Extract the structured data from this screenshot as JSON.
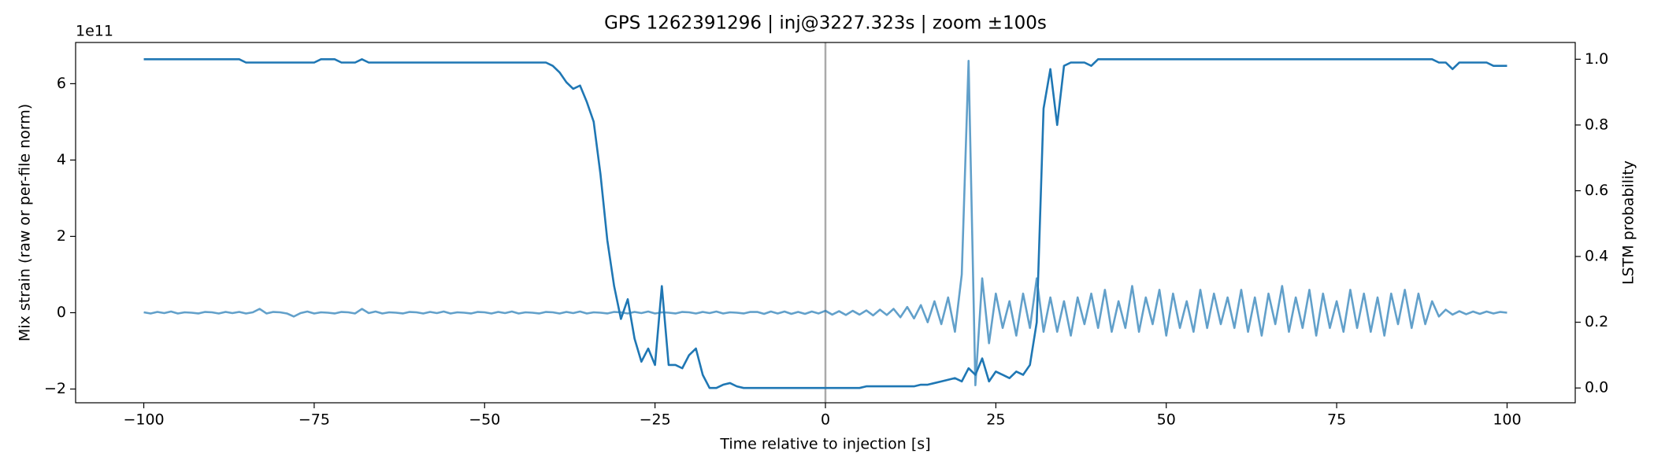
{
  "chart_data": {
    "type": "line",
    "title": "GPS 1262391296 | inj@3227.323s | zoom ±100s",
    "xlabel": "Time relative to injection [s]",
    "ylabel": "Mix strain (raw or per-file norm)",
    "y2label": "LSTM probability",
    "y_offset_label": "1e11",
    "x": [
      -100,
      -99,
      -98,
      -97,
      -96,
      -95,
      -94,
      -93,
      -92,
      -91,
      -90,
      -89,
      -88,
      -87,
      -86,
      -85,
      -84,
      -83,
      -82,
      -81,
      -80,
      -79,
      -78,
      -77,
      -76,
      -75,
      -74,
      -73,
      -72,
      -71,
      -70,
      -69,
      -68,
      -67,
      -66,
      -65,
      -64,
      -63,
      -62,
      -61,
      -60,
      -59,
      -58,
      -57,
      -56,
      -55,
      -54,
      -53,
      -52,
      -51,
      -50,
      -49,
      -48,
      -47,
      -46,
      -45,
      -44,
      -43,
      -42,
      -41,
      -40,
      -39,
      -38,
      -37,
      -36,
      -35,
      -34,
      -33,
      -32,
      -31,
      -30,
      -29,
      -28,
      -27,
      -26,
      -25,
      -24,
      -23,
      -22,
      -21,
      -20,
      -19,
      -18,
      -17,
      -16,
      -15,
      -14,
      -13,
      -12,
      -11,
      -10,
      -9,
      -8,
      -7,
      -6,
      -5,
      -4,
      -3,
      -2,
      -1,
      0,
      1,
      2,
      3,
      4,
      5,
      6,
      7,
      8,
      9,
      10,
      11,
      12,
      13,
      14,
      15,
      16,
      17,
      18,
      19,
      20,
      21,
      22,
      23,
      24,
      25,
      26,
      27,
      28,
      29,
      30,
      31,
      32,
      33,
      34,
      35,
      36,
      37,
      38,
      39,
      40,
      41,
      42,
      43,
      44,
      45,
      46,
      47,
      48,
      49,
      50,
      51,
      52,
      53,
      54,
      55,
      56,
      57,
      58,
      59,
      60,
      61,
      62,
      63,
      64,
      65,
      66,
      67,
      68,
      69,
      70,
      71,
      72,
      73,
      74,
      75,
      76,
      77,
      78,
      79,
      80,
      81,
      82,
      83,
      84,
      85,
      86,
      87,
      88,
      89,
      90,
      91,
      92,
      93,
      94,
      95,
      96,
      97,
      98,
      99,
      100
    ],
    "series": [
      {
        "name": "Mix strain",
        "color": "#1f77b4",
        "opacity": 0.7,
        "axis": "y",
        "values": [
          0.01,
          -0.02,
          0.02,
          -0.01,
          0.03,
          -0.02,
          0.01,
          0.0,
          -0.02,
          0.02,
          0.01,
          -0.02,
          0.02,
          -0.01,
          0.02,
          -0.02,
          0.01,
          0.1,
          -0.02,
          0.02,
          0.01,
          -0.02,
          -0.1,
          -0.01,
          0.03,
          -0.02,
          0.01,
          0.0,
          -0.02,
          0.02,
          0.01,
          -0.02,
          0.1,
          -0.01,
          0.03,
          -0.02,
          0.01,
          0.0,
          -0.02,
          0.02,
          0.01,
          -0.02,
          0.02,
          -0.01,
          0.03,
          -0.02,
          0.01,
          0.0,
          -0.02,
          0.02,
          0.01,
          -0.02,
          0.02,
          -0.01,
          0.03,
          -0.02,
          0.01,
          0.0,
          -0.02,
          0.02,
          0.01,
          -0.02,
          0.02,
          -0.01,
          0.03,
          -0.02,
          0.01,
          0.0,
          -0.02,
          0.02,
          0.01,
          -0.02,
          0.02,
          -0.01,
          0.03,
          -0.02,
          0.01,
          0.0,
          -0.02,
          0.02,
          0.01,
          -0.02,
          0.02,
          -0.01,
          0.03,
          -0.02,
          0.01,
          0.0,
          -0.02,
          0.02,
          0.02,
          -0.03,
          0.03,
          -0.02,
          0.03,
          -0.03,
          0.02,
          -0.03,
          0.03,
          -0.02,
          0.05,
          -0.05,
          0.04,
          -0.06,
          0.05,
          -0.05,
          0.06,
          -0.07,
          0.08,
          -0.06,
          0.1,
          -0.12,
          0.15,
          -0.15,
          0.2,
          -0.25,
          0.3,
          -0.3,
          0.4,
          -0.5,
          1.0,
          6.6,
          -1.9,
          0.9,
          -0.8,
          0.5,
          -0.4,
          0.3,
          -0.6,
          0.5,
          -0.4,
          0.9,
          -0.5,
          0.4,
          -0.5,
          0.3,
          -0.6,
          0.4,
          -0.3,
          0.5,
          -0.4,
          0.6,
          -0.5,
          0.3,
          -0.4,
          0.7,
          -0.5,
          0.4,
          -0.3,
          0.6,
          -0.6,
          0.5,
          -0.4,
          0.3,
          -0.5,
          0.6,
          -0.4,
          0.5,
          -0.3,
          0.4,
          -0.4,
          0.6,
          -0.5,
          0.4,
          -0.6,
          0.5,
          -0.3,
          0.7,
          -0.5,
          0.4,
          -0.4,
          0.6,
          -0.6,
          0.5,
          -0.4,
          0.3,
          -0.5,
          0.6,
          -0.4,
          0.5,
          -0.5,
          0.4,
          -0.6,
          0.5,
          -0.3,
          0.6,
          -0.4,
          0.5,
          -0.3,
          0.3,
          -0.1,
          0.08,
          -0.05,
          0.04,
          -0.04,
          0.03,
          -0.03,
          0.03,
          -0.02,
          0.02,
          0.0
        ]
      },
      {
        "name": "LSTM probability",
        "color": "#1f77b4",
        "opacity": 1,
        "axis": "y2",
        "values": [
          1.0,
          1.0,
          1.0,
          1.0,
          1.0,
          1.0,
          1.0,
          1.0,
          1.0,
          1.0,
          1.0,
          1.0,
          1.0,
          1.0,
          1.0,
          0.99,
          0.99,
          0.99,
          0.99,
          0.99,
          0.99,
          0.99,
          0.99,
          0.99,
          0.99,
          0.99,
          1.0,
          1.0,
          1.0,
          0.99,
          0.99,
          0.99,
          1.0,
          0.99,
          0.99,
          0.99,
          0.99,
          0.99,
          0.99,
          0.99,
          0.99,
          0.99,
          0.99,
          0.99,
          0.99,
          0.99,
          0.99,
          0.99,
          0.99,
          0.99,
          0.99,
          0.99,
          0.99,
          0.99,
          0.99,
          0.99,
          0.99,
          0.99,
          0.99,
          0.99,
          0.98,
          0.96,
          0.93,
          0.91,
          0.92,
          0.87,
          0.81,
          0.65,
          0.45,
          0.31,
          0.21,
          0.27,
          0.15,
          0.08,
          0.12,
          0.07,
          0.31,
          0.07,
          0.07,
          0.06,
          0.1,
          0.12,
          0.04,
          0.0,
          0.0,
          0.01,
          0.015,
          0.005,
          0.0,
          0.0,
          0.0,
          0.0,
          0.0,
          0.0,
          0.0,
          0.0,
          0.0,
          0.0,
          0.0,
          0.0,
          0.0,
          0.0,
          0.0,
          0.0,
          0.0,
          0.0,
          0.005,
          0.005,
          0.005,
          0.005,
          0.005,
          0.005,
          0.005,
          0.005,
          0.01,
          0.01,
          0.015,
          0.02,
          0.025,
          0.03,
          0.02,
          0.06,
          0.04,
          0.09,
          0.02,
          0.05,
          0.04,
          0.03,
          0.05,
          0.04,
          0.07,
          0.2,
          0.85,
          0.97,
          0.8,
          0.98,
          0.99,
          0.99,
          0.99,
          0.98,
          1.0,
          1.0,
          1.0,
          1.0,
          1.0,
          1.0,
          1.0,
          1.0,
          1.0,
          1.0,
          1.0,
          1.0,
          1.0,
          1.0,
          1.0,
          1.0,
          1.0,
          1.0,
          1.0,
          1.0,
          1.0,
          1.0,
          1.0,
          1.0,
          1.0,
          1.0,
          1.0,
          1.0,
          1.0,
          1.0,
          1.0,
          1.0,
          1.0,
          1.0,
          1.0,
          1.0,
          1.0,
          1.0,
          1.0,
          1.0,
          1.0,
          1.0,
          1.0,
          1.0,
          1.0,
          1.0,
          1.0,
          1.0,
          1.0,
          1.0,
          0.99,
          0.99,
          0.97,
          0.99,
          0.99,
          0.99,
          0.99,
          0.99,
          0.98,
          0.98,
          0.98
        ]
      }
    ],
    "vlines": [
      0
    ],
    "vline_color": "#aaaaaa",
    "xlim": [
      -110,
      110
    ],
    "xticks": [
      {
        "value": -100,
        "label": "−100"
      },
      {
        "value": -75,
        "label": "−75"
      },
      {
        "value": -50,
        "label": "−50"
      },
      {
        "value": -25,
        "label": "−25"
      },
      0,
      25,
      50,
      75,
      100
    ],
    "ylim": [
      -2.36,
      7.08
    ],
    "yticks": [
      {
        "value": -2,
        "label": "−2"
      },
      0,
      2,
      4,
      6
    ],
    "y2lim": [
      -0.045,
      1.051
    ],
    "y2ticks": [
      {
        "value": 0,
        "label": "0.0"
      },
      {
        "value": 0.2,
        "label": "0.2"
      },
      {
        "value": 0.4,
        "label": "0.4"
      },
      {
        "value": 0.6,
        "label": "0.6"
      },
      {
        "value": 0.8,
        "label": "0.8"
      },
      {
        "value": 1,
        "label": "1.0"
      }
    ],
    "grid": false
  }
}
